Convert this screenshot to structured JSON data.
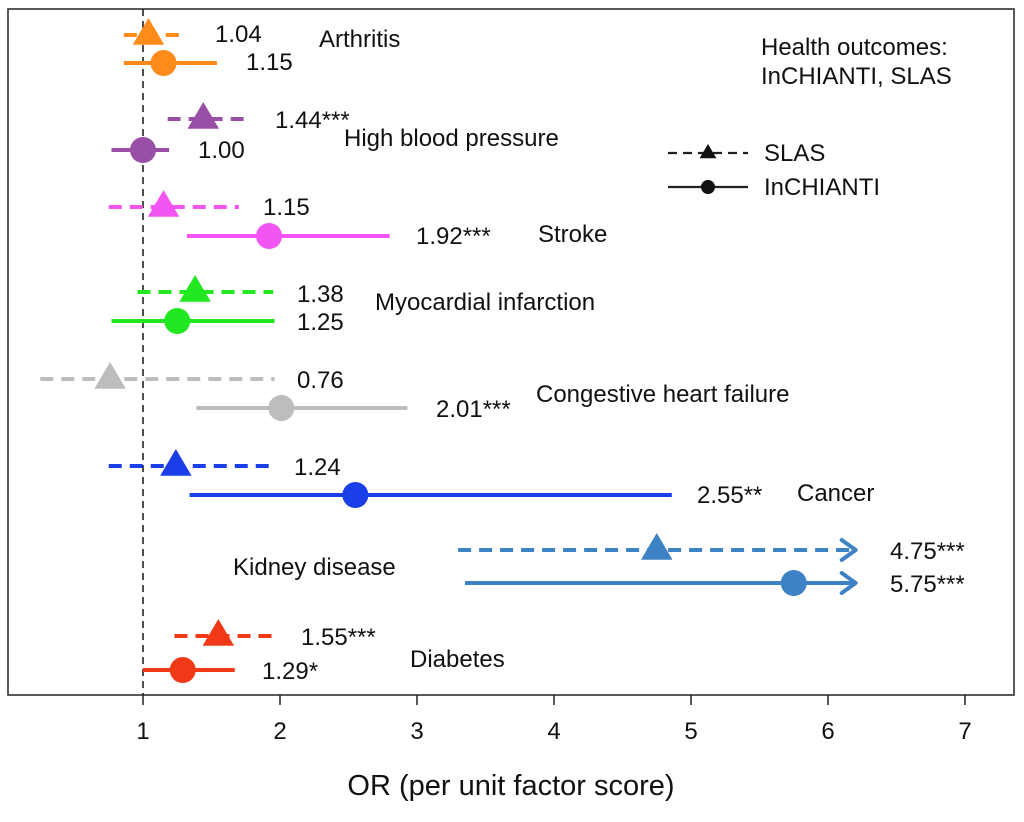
{
  "chart_data": {
    "type": "scatter",
    "xlabel": "OR (per unit factor score)",
    "xlim": [
      0.0,
      7.3
    ],
    "xticks": [
      1,
      2,
      3,
      4,
      5,
      6,
      7
    ],
    "reference_line": 1,
    "legend_title": "Health outcomes:\nInCHIANTI, SLAS",
    "legend": [
      {
        "name": "SLAS",
        "marker": "triangle",
        "line": "dashed"
      },
      {
        "name": "InCHIANTI",
        "marker": "circle",
        "line": "solid"
      }
    ],
    "legend_position": "top-right",
    "outcomes": [
      {
        "name": "Arthritis",
        "color": "#FF8C1A",
        "slas": {
          "or": 1.04,
          "lo": 0.86,
          "hi": 1.27,
          "label": "1.04"
        },
        "inchianti": {
          "or": 1.15,
          "lo": 0.86,
          "hi": 1.54,
          "label": "1.15"
        }
      },
      {
        "name": "High blood pressure",
        "color": "#9A4FA6",
        "slas": {
          "or": 1.44,
          "lo": 1.18,
          "hi": 1.77,
          "label": "1.44***"
        },
        "inchianti": {
          "or": 1.0,
          "lo": 0.77,
          "hi": 1.19,
          "label": "1.00"
        }
      },
      {
        "name": "Stroke",
        "color": "#F355F3",
        "slas": {
          "or": 1.15,
          "lo": 0.75,
          "hi": 1.7,
          "label": "1.15"
        },
        "inchianti": {
          "or": 1.92,
          "lo": 1.32,
          "hi": 2.8,
          "label": "1.92***"
        }
      },
      {
        "name": "Myocardial infarction",
        "color": "#22E822",
        "slas": {
          "or": 1.38,
          "lo": 0.96,
          "hi": 1.95,
          "label": "1.38"
        },
        "inchianti": {
          "or": 1.25,
          "lo": 0.77,
          "hi": 1.96,
          "label": "1.25"
        }
      },
      {
        "name": "Congestive heart failure",
        "color": "#BDBDBD",
        "slas": {
          "or": 0.76,
          "lo": 0.25,
          "hi": 1.96,
          "label": "0.76"
        },
        "inchianti": {
          "or": 2.01,
          "lo": 1.39,
          "hi": 2.93,
          "label": "2.01***"
        }
      },
      {
        "name": "Cancer",
        "color": "#1A3FE8",
        "slas": {
          "or": 1.24,
          "lo": 0.75,
          "hi": 1.96,
          "label": "1.24"
        },
        "inchianti": {
          "or": 2.55,
          "lo": 1.34,
          "hi": 4.86,
          "label": "2.55**"
        }
      },
      {
        "name": "Kidney disease",
        "color": "#3D82C4",
        "slas": {
          "or": 4.75,
          "lo": 3.3,
          "hi": 6.1,
          "label": "4.75***",
          "arrow": true
        },
        "inchianti": {
          "or": 5.75,
          "lo": 3.35,
          "hi": 6.1,
          "label": "5.75***",
          "arrow": true
        }
      },
      {
        "name": "Diabetes",
        "color": "#F03A17",
        "slas": {
          "or": 1.55,
          "lo": 1.23,
          "hi": 1.96,
          "label": "1.55***"
        },
        "inchianti": {
          "or": 1.29,
          "lo": 1.0,
          "hi": 1.67,
          "label": "1.29*"
        }
      }
    ]
  }
}
